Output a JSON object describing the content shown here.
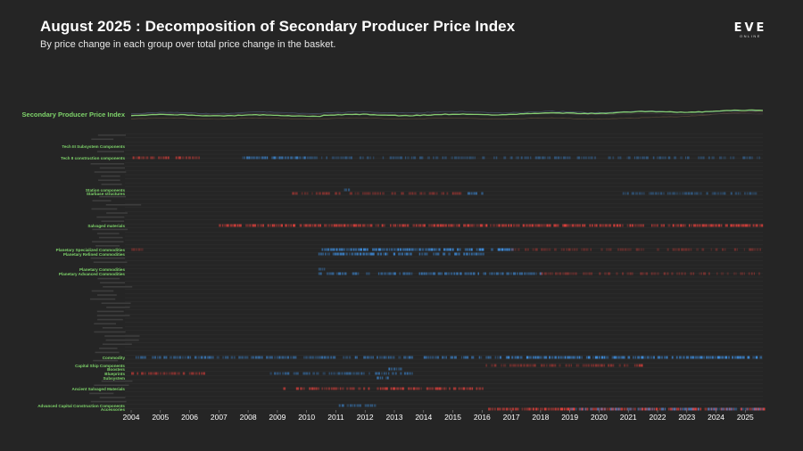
{
  "header": {
    "title": "August 2025 : Decomposition of Secondary Producer Price Index",
    "subtitle": "By price change in each group over total price change in the basket."
  },
  "logo": {
    "main": "EVE",
    "sub": "ONLINE"
  },
  "colors": {
    "background": "#252525",
    "index_line": "#8fe07a",
    "label_green": "#7ed36a",
    "increase": "#e8413c",
    "decrease": "#3f8fe0",
    "row_line": "#3a3a3a"
  },
  "chart_data": {
    "type": "heatmap",
    "index_series_label": "Secondary Producer Price Index",
    "x_range": [
      2004.0,
      2025.6
    ],
    "x_ticks": [
      "2004",
      "2005",
      "2006",
      "2007",
      "2008",
      "2009",
      "2010",
      "2011",
      "2012",
      "2013",
      "2014",
      "2015",
      "2016",
      "2017",
      "2018",
      "2019",
      "2020",
      "2021",
      "2022",
      "2023",
      "2024",
      "2025"
    ],
    "legend_color_meaning": {
      "red": "price increase",
      "blue": "price decrease"
    },
    "rows": [
      {
        "label": "Tech III Subsystem Components",
        "highlight": true,
        "cells": [
          {
            "start": 2016.9,
            "end": 2016.97,
            "sign": -1,
            "intensity": 0.8
          }
        ]
      },
      {
        "label": "Tech II construction components",
        "highlight": true,
        "cells": [
          {
            "start": 2004.05,
            "end": 2006.4,
            "sign": 1,
            "intensity": 0.6
          },
          {
            "start": 2007.8,
            "end": 2010.4,
            "sign": -1,
            "intensity": 0.7
          },
          {
            "start": 2010.5,
            "end": 2015.8,
            "sign": -1,
            "intensity": 0.4
          },
          {
            "start": 2016.0,
            "end": 2025.5,
            "sign": -1,
            "intensity": 0.35
          }
        ]
      },
      {
        "label": "Station components",
        "highlight": true,
        "cells": [
          {
            "start": 2011.2,
            "end": 2011.45,
            "sign": -1,
            "intensity": 0.8
          }
        ]
      },
      {
        "label": "Starbase structures",
        "highlight": true,
        "cells": [
          {
            "start": 2009.3,
            "end": 2015.4,
            "sign": 1,
            "intensity": 0.4
          },
          {
            "start": 2015.5,
            "end": 2016.0,
            "sign": -1,
            "intensity": 0.8
          },
          {
            "start": 2020.8,
            "end": 2025.5,
            "sign": -1,
            "intensity": 0.35
          }
        ]
      },
      {
        "label": "Salvaged materials",
        "highlight": true,
        "cells": [
          {
            "start": 2007.0,
            "end": 2025.6,
            "sign": 1,
            "intensity": 0.8
          }
        ]
      },
      {
        "label": "Planetary Specialized Commodities",
        "highlight": true,
        "cells": [
          {
            "start": 2004.0,
            "end": 2004.6,
            "sign": 1,
            "intensity": 0.4
          },
          {
            "start": 2010.4,
            "end": 2017.0,
            "sign": -1,
            "intensity": 0.9
          },
          {
            "start": 2017.0,
            "end": 2025.5,
            "sign": 1,
            "intensity": 0.3
          }
        ]
      },
      {
        "label": "Planetary Refined Commodities",
        "highlight": true,
        "cells": [
          {
            "start": 2010.4,
            "end": 2016.0,
            "sign": -1,
            "intensity": 0.8
          }
        ]
      },
      {
        "label": "Planetary Commodities",
        "highlight": true,
        "cells": [
          {
            "start": 2010.4,
            "end": 2010.8,
            "sign": -1,
            "intensity": 0.4
          }
        ]
      },
      {
        "label": "Planetary Advanced Commodities",
        "highlight": true,
        "cells": [
          {
            "start": 2010.4,
            "end": 2018.0,
            "sign": -1,
            "intensity": 0.6
          },
          {
            "start": 2018.0,
            "end": 2025.5,
            "sign": 1,
            "intensity": 0.3
          }
        ]
      },
      {
        "label": "Commodity",
        "highlight": true,
        "cells": [
          {
            "start": 2004.05,
            "end": 2016.6,
            "sign": -1,
            "intensity": 0.6
          },
          {
            "start": 2016.6,
            "end": 2025.6,
            "sign": -1,
            "intensity": 0.9
          }
        ]
      },
      {
        "label": "Capital Ship Components",
        "highlight": true,
        "cells": [
          {
            "start": 2016.0,
            "end": 2021.3,
            "sign": 1,
            "intensity": 0.4
          },
          {
            "start": 2021.3,
            "end": 2021.5,
            "sign": 1,
            "intensity": 0.8
          }
        ]
      },
      {
        "label": "Boosters",
        "highlight": true,
        "cells": [
          {
            "start": 2012.8,
            "end": 2013.2,
            "sign": -1,
            "intensity": 0.9
          }
        ]
      },
      {
        "label": "Blueprints",
        "highlight": true,
        "cells": [
          {
            "start": 2004.0,
            "end": 2006.5,
            "sign": 1,
            "intensity": 0.5
          },
          {
            "start": 2008.6,
            "end": 2013.6,
            "sign": -1,
            "intensity": 0.5
          }
        ]
      },
      {
        "label": "Subsystem",
        "highlight": true,
        "cells": [
          {
            "start": 2012.4,
            "end": 2012.8,
            "sign": -1,
            "intensity": 0.6
          }
        ]
      },
      {
        "label": "Ancient Salvaged Materials",
        "highlight": true,
        "cells": [
          {
            "start": 2009.2,
            "end": 2016.0,
            "sign": 1,
            "intensity": 0.7
          }
        ]
      },
      {
        "label": "Advanced Capital Construction Components",
        "highlight": true,
        "cells": [
          {
            "start": 2011.1,
            "end": 2012.4,
            "sign": -1,
            "intensity": 0.5
          }
        ]
      },
      {
        "label": "Accessories",
        "highlight": true,
        "cells": [
          {
            "start": 2016.1,
            "end": 2025.6,
            "sign": 1,
            "intensity": 0.9
          },
          {
            "start": 2019.0,
            "end": 2025.6,
            "sign": -1,
            "intensity": 0.6
          }
        ]
      }
    ]
  }
}
